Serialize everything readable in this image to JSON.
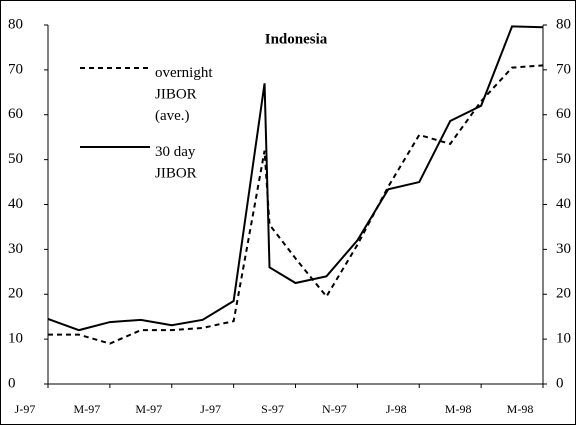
{
  "chart_data": {
    "type": "line",
    "title": "Indonesia",
    "xlim": [
      0,
      16
    ],
    "xticks": [
      {
        "value": 0,
        "label": "J-97"
      },
      {
        "value": 2,
        "label": "M-97"
      },
      {
        "value": 4,
        "label": "M-97"
      },
      {
        "value": 6,
        "label": "J-97"
      },
      {
        "value": 8,
        "label": "S-97"
      },
      {
        "value": 10,
        "label": "N-97"
      },
      {
        "value": 12,
        "label": "J-98"
      },
      {
        "value": 14,
        "label": "M-98"
      },
      {
        "value": 16,
        "label": "M-98"
      }
    ],
    "ylim": [
      0,
      80
    ],
    "yticks": [
      0,
      10,
      20,
      30,
      40,
      50,
      60,
      70,
      80
    ],
    "y2lim": [
      0,
      80
    ],
    "y2ticks": [
      0,
      10,
      20,
      30,
      40,
      50,
      60,
      70,
      80
    ],
    "grid": false,
    "series": [
      {
        "name": "overnight\nJIBOR\n(ave.)",
        "color": "#000000",
        "dash": true,
        "x": [
          0,
          1,
          2,
          3,
          4,
          5,
          6,
          7,
          7.16,
          8,
          9,
          10,
          11,
          12,
          13,
          14,
          15,
          16
        ],
        "values": [
          11,
          11,
          9,
          12,
          12,
          12.5,
          14,
          52,
          35.5,
          28,
          19.5,
          31,
          44,
          55.5,
          53.5,
          63,
          70.5,
          71
        ]
      },
      {
        "name": "30 day\nJIBOR",
        "color": "#000000",
        "dash": false,
        "x": [
          0,
          1,
          2,
          3,
          4,
          5,
          6,
          7,
          7.16,
          8,
          9,
          10,
          11,
          12,
          13,
          14,
          15,
          16
        ],
        "values": [
          14.5,
          12,
          13.8,
          14.3,
          13.1,
          14.3,
          18.5,
          67,
          26,
          22.5,
          24,
          32,
          43.4,
          45,
          58.6,
          62,
          79.7,
          79.5
        ]
      }
    ]
  }
}
